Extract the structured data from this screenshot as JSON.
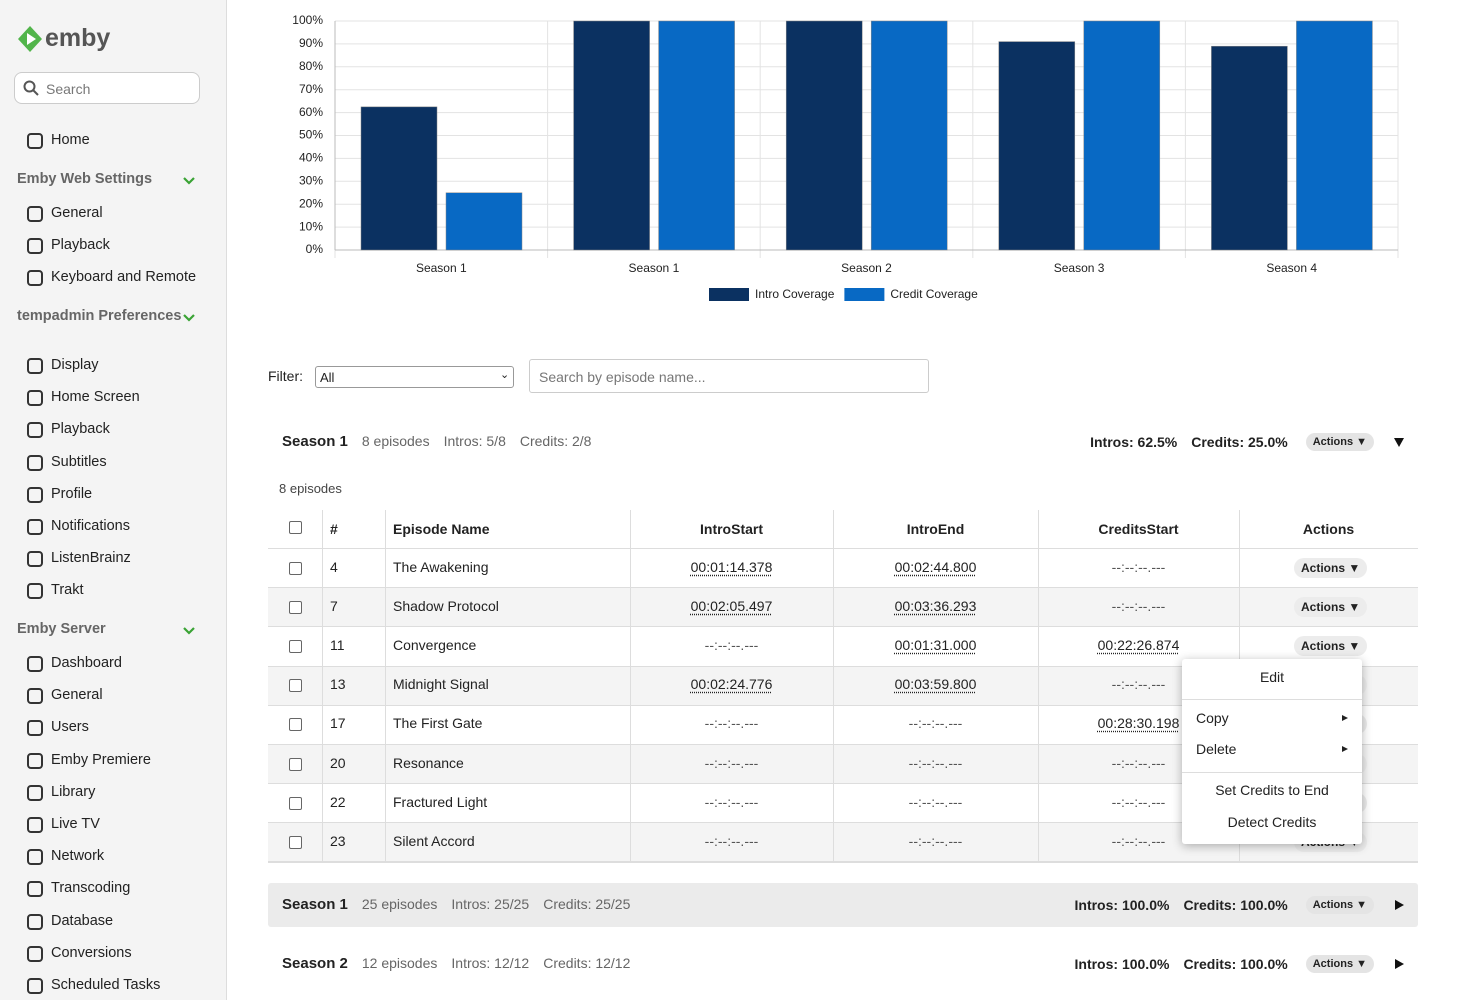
{
  "sidebar": {
    "logo": "emby",
    "search_placeholder": "Search",
    "home": "Home",
    "sections": [
      {
        "title": "Emby Web Settings",
        "items": [
          "General",
          "Playback",
          "Keyboard and Remote"
        ]
      },
      {
        "title": "tempadmin Preferences",
        "items": [
          "Display",
          "Home Screen",
          "Playback",
          "Subtitles",
          "Profile",
          "Notifications",
          "ListenBrainz",
          "Trakt"
        ]
      },
      {
        "title": "Emby Server",
        "items": [
          "Dashboard",
          "General",
          "Users",
          "Emby Premiere",
          "Library",
          "Live TV",
          "Network",
          "Transcoding",
          "Database",
          "Conversions",
          "Scheduled Tasks"
        ]
      }
    ]
  },
  "chart_data": {
    "type": "bar",
    "categories": [
      "Season 1",
      "Season 1",
      "Season 2",
      "Season 3",
      "Season 4"
    ],
    "series": [
      {
        "name": "Intro Coverage",
        "color": "#0b3161",
        "values": [
          62.5,
          100,
          100,
          91,
          89
        ]
      },
      {
        "name": "Credit Coverage",
        "color": "#0869c4",
        "values": [
          25,
          100,
          100,
          100,
          100
        ]
      }
    ],
    "ylim": [
      0,
      100
    ],
    "yticks": [
      {
        "value": 0,
        "label": "0%"
      },
      {
        "value": 10,
        "label": "10%"
      },
      {
        "value": 20,
        "label": "20%"
      },
      {
        "value": 30,
        "label": "30%"
      },
      {
        "value": 40,
        "label": "40%"
      },
      {
        "value": 50,
        "label": "50%"
      },
      {
        "value": 60,
        "label": "60%"
      },
      {
        "value": 70,
        "label": "70%"
      },
      {
        "value": 80,
        "label": "80%"
      },
      {
        "value": 90,
        "label": "90%"
      },
      {
        "value": 100,
        "label": "100%"
      }
    ],
    "grid": true,
    "legend": "bottom"
  },
  "filter": {
    "label": "Filter:",
    "selected": "All",
    "search_placeholder": "Search by episode name..."
  },
  "seasons": [
    {
      "name": "Season 1",
      "episodes": "8 episodes",
      "intros": "Intros: 5/8",
      "credits": "Credits: 2/8",
      "intro_pct": "Intros: 62.5%",
      "credit_pct": "Credits: 25.0%",
      "actions": "Actions ▼",
      "expanded": true
    },
    {
      "name": "Season 1",
      "episodes": "25 episodes",
      "intros": "Intros: 25/25",
      "credits": "Credits: 25/25",
      "intro_pct": "Intros: 100.0%",
      "credit_pct": "Credits: 100.0%",
      "actions": "Actions ▼",
      "expanded": false
    },
    {
      "name": "Season 2",
      "episodes": "12 episodes",
      "intros": "Intros: 12/12",
      "credits": "Credits: 12/12",
      "intro_pct": "Intros: 100.0%",
      "credit_pct": "Credits: 100.0%",
      "actions": "Actions ▼",
      "expanded": false
    }
  ],
  "table": {
    "count_label": "8 episodes",
    "headers": [
      "#",
      "Episode Name",
      "IntroStart",
      "IntroEnd",
      "CreditsStart",
      "Actions"
    ],
    "row_action": "Actions ▼",
    "rows": [
      [
        4,
        "The Awakening",
        "00:01:14.378",
        "00:02:44.800",
        "--:--:--.---"
      ],
      [
        7,
        "Shadow Protocol",
        "00:02:05.497",
        "00:03:36.293",
        "--:--:--.---"
      ],
      [
        11,
        "Convergence",
        "--:--:--.---",
        "00:01:31.000",
        "00:22:26.874"
      ],
      [
        13,
        "Midnight Signal",
        "00:02:24.776",
        "00:03:59.800",
        "--:--:--.---"
      ],
      [
        17,
        "The First Gate",
        "--:--:--.---",
        "--:--:--.---",
        "00:28:30.198"
      ],
      [
        20,
        "Resonance",
        "--:--:--.---",
        "--:--:--.---",
        "--:--:--.---"
      ],
      [
        22,
        "Fractured Light",
        "--:--:--.---",
        "--:--:--.---",
        "--:--:--.---"
      ],
      [
        23,
        "Silent Accord",
        "--:--:--.---",
        "--:--:--.---",
        "--:--:--.---"
      ]
    ]
  },
  "context_menu": {
    "items": [
      "Edit",
      "Copy",
      "Delete",
      "Set Credits to End",
      "Detect Credits"
    ]
  }
}
